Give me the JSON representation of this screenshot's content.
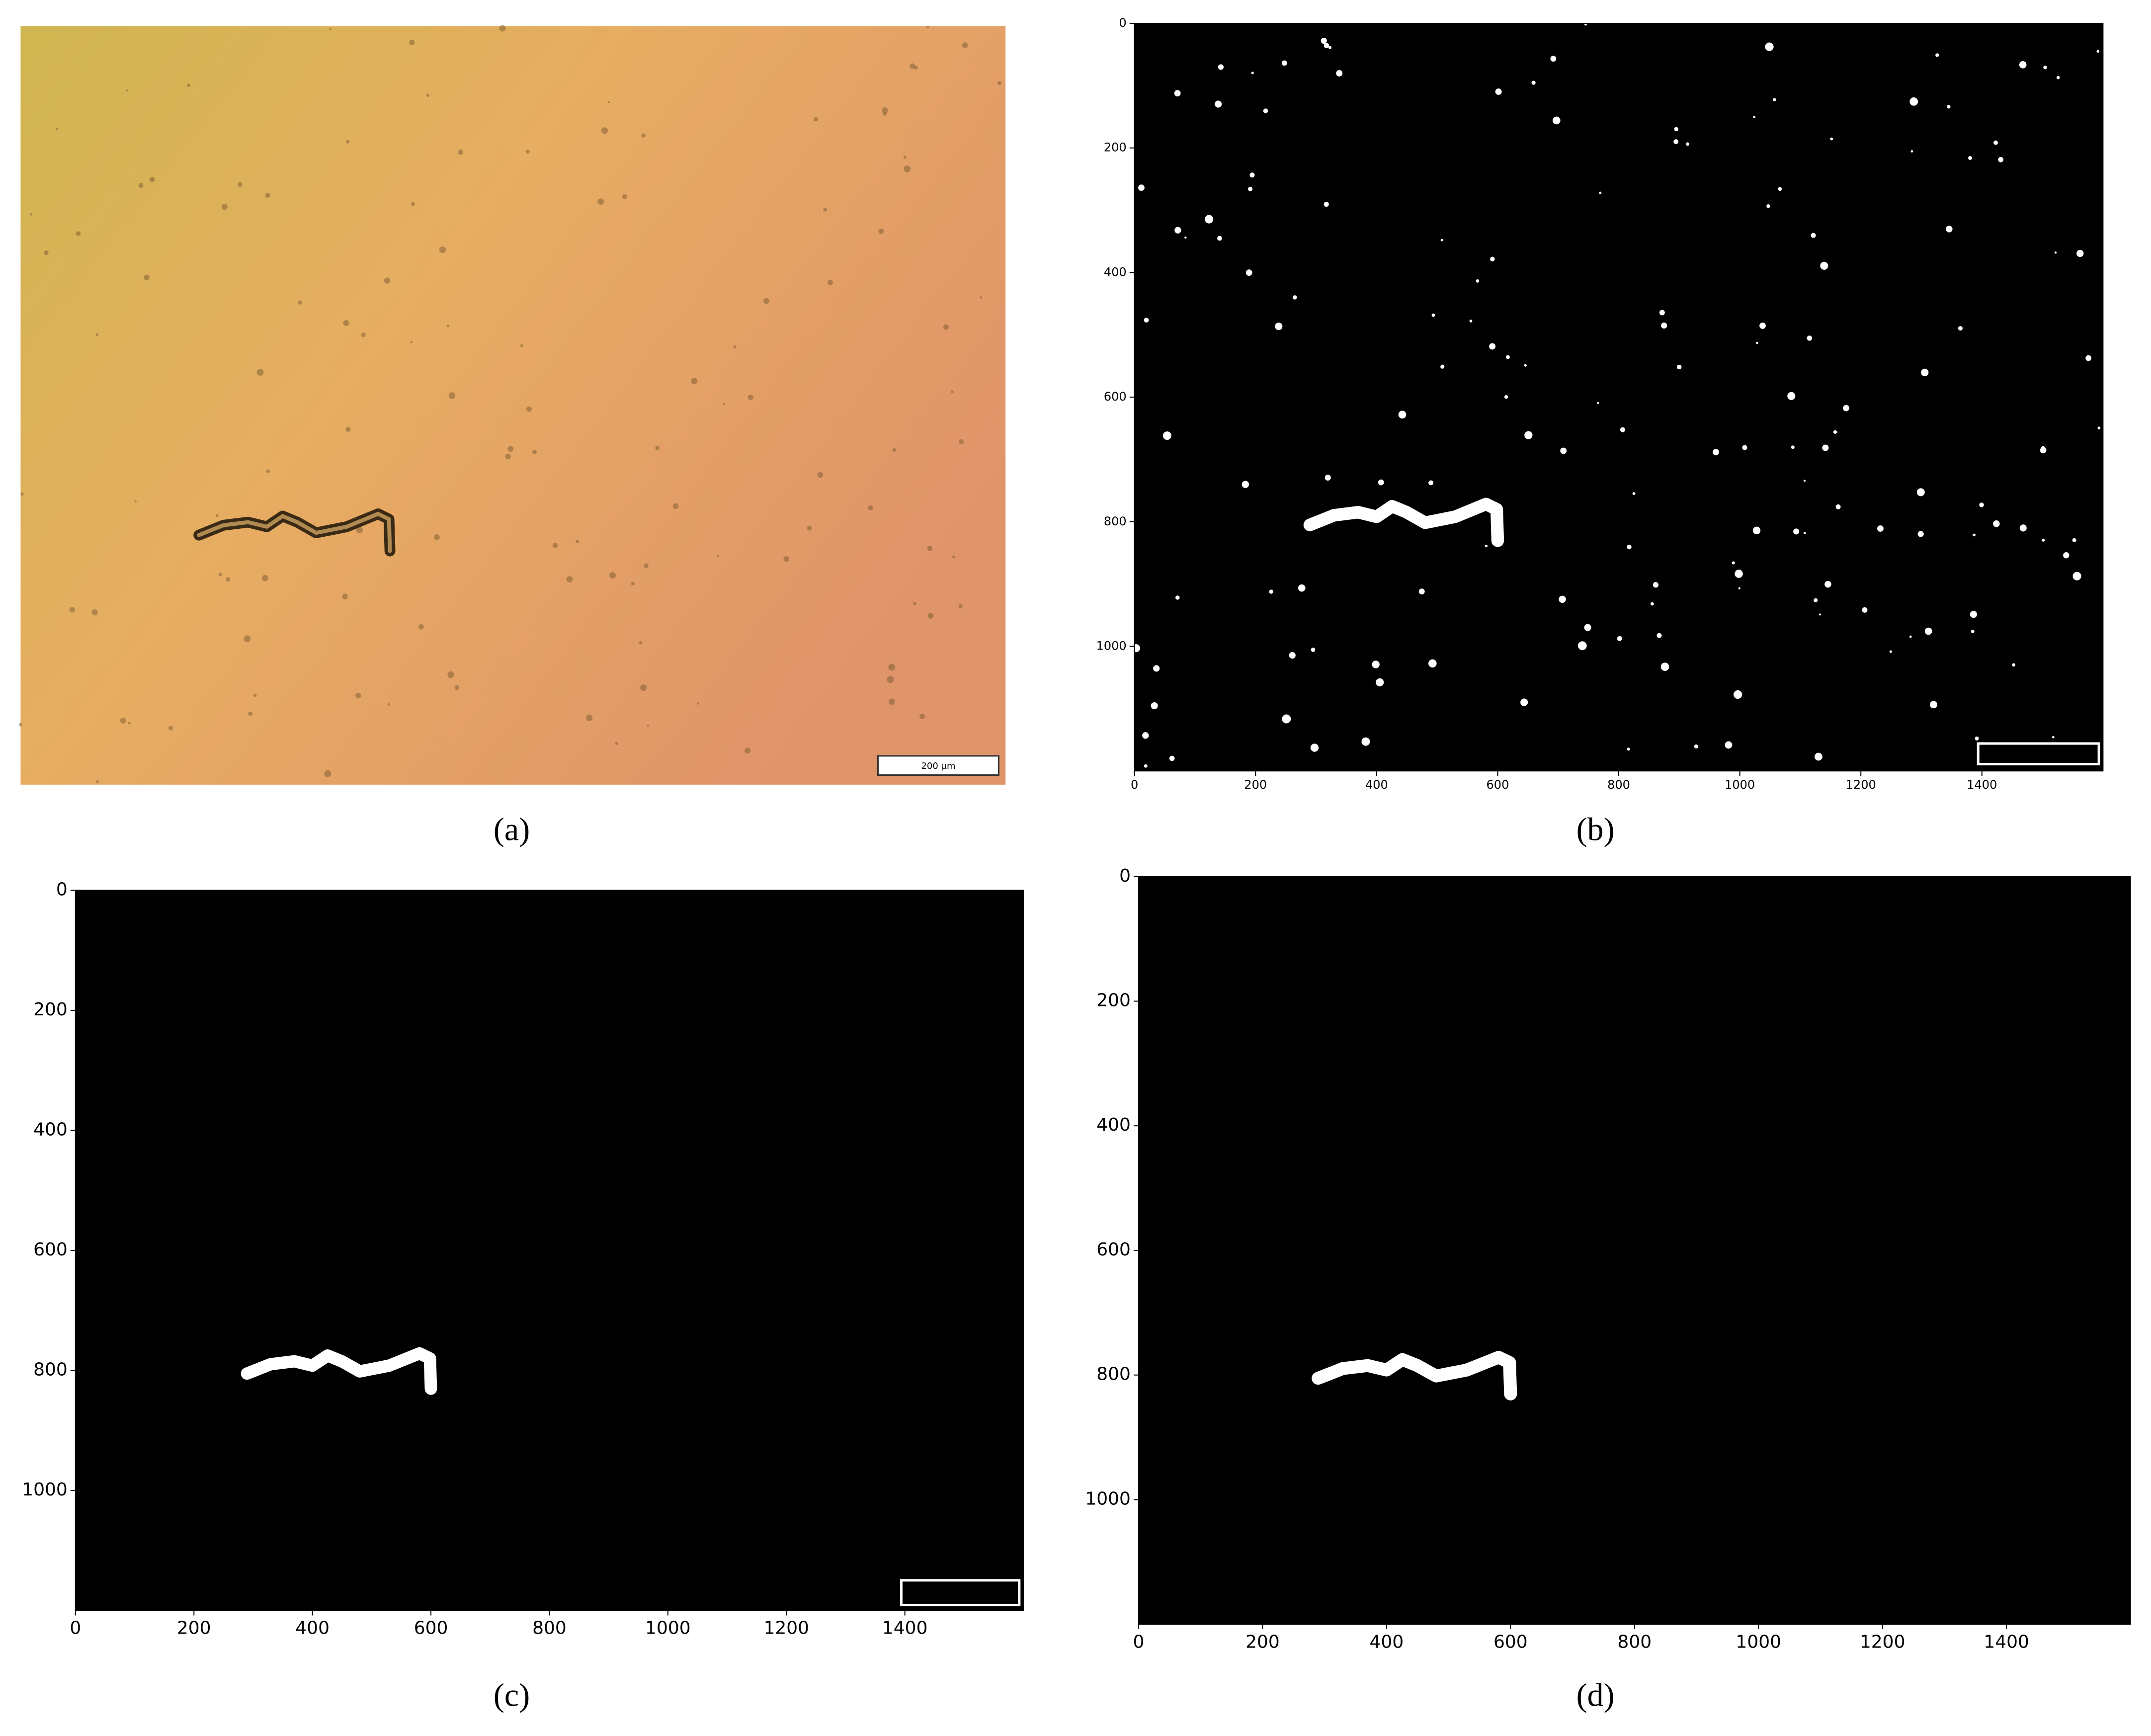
{
  "panels": [
    {
      "label": "(a)",
      "scale_bar": "200 μm"
    },
    {
      "label": "(b)",
      "xlim": [
        0,
        1600
      ],
      "ylim": [
        0,
        1200
      ],
      "xticks": [
        0,
        200,
        400,
        600,
        800,
        1000,
        1200,
        1400
      ],
      "yticks": [
        0,
        200,
        400,
        600,
        800,
        1000
      ]
    },
    {
      "label": "(c)",
      "xlim": [
        0,
        1600
      ],
      "ylim": [
        0,
        1200
      ],
      "xticks": [
        0,
        200,
        400,
        600,
        800,
        1000,
        1200,
        1400
      ],
      "yticks": [
        0,
        200,
        400,
        600,
        800,
        1000
      ]
    },
    {
      "label": "(d)",
      "xlim": [
        0,
        1600
      ],
      "ylim": [
        0,
        1200
      ],
      "xticks": [
        0,
        200,
        400,
        600,
        800,
        1000,
        1200,
        1400
      ],
      "yticks": [
        0,
        200,
        400,
        600,
        800,
        1000
      ]
    }
  ]
}
